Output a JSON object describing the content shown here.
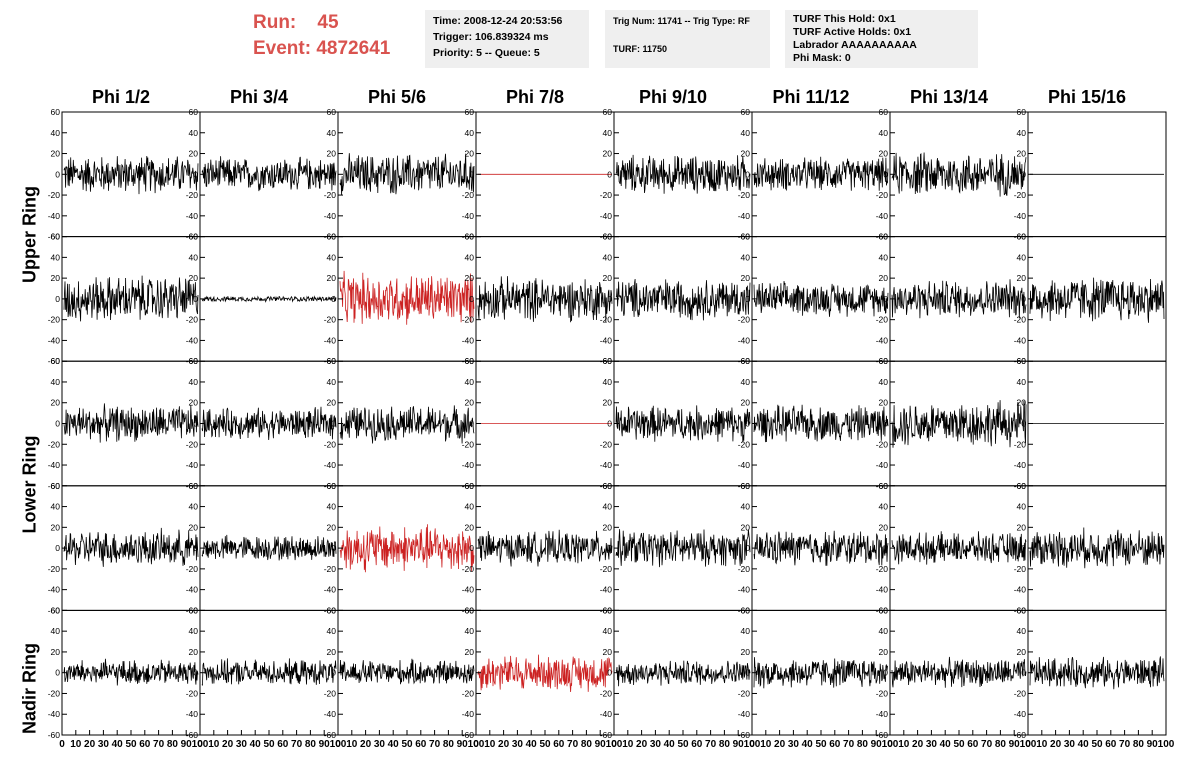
{
  "header": {
    "run_label": "Run:",
    "run_value": "45",
    "event_label": "Event:",
    "event_value": "4872641"
  },
  "info_time": {
    "time": "Time: 2008-12-24 20:53:56",
    "trigger": "Trigger: 106.839324 ms",
    "priority": "Priority: 5 -- Queue: 5"
  },
  "info_trig": {
    "trig": "Trig Num: 11741 -- Trig Type: RF",
    "turf": "TURF: 11750"
  },
  "info_turf": {
    "this_hold": "TURF This Hold: 0x1",
    "active_holds": "TURF Active Holds: 0x1",
    "labrador": "Labrador AAAAAAAAAA",
    "phi_mask": "Phi Mask: 0"
  },
  "phi_labels": [
    "Phi 1/2",
    "Phi 3/4",
    "Phi 5/6",
    "Phi 7/8",
    "Phi 9/10",
    "Phi 11/12",
    "Phi 13/14",
    "Phi 15/16"
  ],
  "ring_labels": [
    "Upper Ring",
    "Lower Ring",
    "Nadir Ring"
  ],
  "chart_data": {
    "type": "line",
    "xlim": [
      0,
      100
    ],
    "ylim": [
      -60,
      60
    ],
    "y_ticks": [
      "60",
      "40",
      "20",
      "0",
      "-20",
      "-40",
      "-60"
    ],
    "x_ticks": [
      "0",
      "10",
      "20",
      "30",
      "40",
      "50",
      "60",
      "70",
      "80",
      "90",
      "100"
    ],
    "colors": {
      "normal": "#000000",
      "triggered": "#cc2222"
    },
    "rows": [
      {
        "ring": "Upper Ring",
        "amplitudes": [
          15,
          13,
          16,
          0,
          15,
          13,
          17,
          0
        ],
        "triggered": [
          false,
          false,
          false,
          true,
          false,
          false,
          false,
          false
        ]
      },
      {
        "ring": "Upper Ring",
        "amplitudes": [
          18,
          2,
          20,
          17,
          16,
          13,
          15,
          18
        ],
        "triggered": [
          false,
          false,
          true,
          false,
          false,
          false,
          false,
          false
        ]
      },
      {
        "ring": "Lower Ring",
        "amplitudes": [
          14,
          12,
          14,
          0,
          14,
          14,
          18,
          0
        ],
        "triggered": [
          false,
          false,
          false,
          true,
          false,
          false,
          false,
          false
        ]
      },
      {
        "ring": "Lower Ring",
        "amplitudes": [
          14,
          10,
          18,
          13,
          14,
          14,
          12,
          15
        ],
        "triggered": [
          false,
          false,
          true,
          false,
          false,
          false,
          false,
          false
        ]
      },
      {
        "ring": "Nadir Ring",
        "amplitudes": [
          10,
          10,
          10,
          14,
          10,
          12,
          11,
          12
        ],
        "triggered": [
          false,
          false,
          false,
          true,
          false,
          false,
          false,
          false
        ]
      }
    ]
  }
}
